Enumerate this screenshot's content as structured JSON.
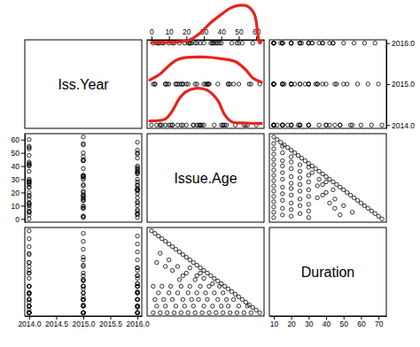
{
  "chart_data": {
    "type": "scatter_matrix",
    "marker": "circle",
    "color": "#000000",
    "variables": [
      {
        "name": "Iss.Year",
        "values": [
          2014,
          2015,
          2016,
          2014,
          2015,
          2016,
          2014,
          2015,
          2016,
          2014,
          2015,
          2016,
          2014,
          2015,
          2016,
          2014,
          2015,
          2016,
          2014,
          2015,
          2016,
          2014,
          2015,
          2016,
          2014,
          2015,
          2016,
          2014,
          2015,
          2016,
          2014,
          2015,
          2016,
          2014,
          2015,
          2016,
          2014,
          2015,
          2016,
          2014,
          2015,
          2016,
          2014,
          2015,
          2016,
          2014,
          2015,
          2016,
          2014,
          2015,
          2016,
          2014,
          2015,
          2016,
          2014,
          2015,
          2016,
          2014,
          2015,
          2016,
          2014,
          2015,
          2016,
          2014,
          2015,
          2016,
          2014,
          2015,
          2016,
          2014,
          2015,
          2016,
          2014,
          2015,
          2016,
          2014,
          2015,
          2016,
          2014,
          2015,
          2016,
          2014,
          2015,
          2016,
          2014,
          2015,
          2016,
          2014,
          2015,
          2016,
          2014,
          2015,
          2016,
          2014,
          2015,
          2016,
          2014,
          2015,
          2016
        ],
        "lim": [
          2013.92,
          2016.08
        ],
        "xticks": [
          {
            "value": 2014,
            "label": "2014.0"
          },
          {
            "value": 2014.5,
            "label": "2014.5"
          },
          {
            "value": 2015,
            "label": "2015.0"
          },
          {
            "value": 2015.5,
            "label": "2015.5"
          },
          {
            "value": 2016,
            "label": "2016.0"
          }
        ],
        "yticks": [
          {
            "value": 2014,
            "label": "2014.0"
          },
          {
            "value": 2015,
            "label": "2015.0"
          },
          {
            "value": 2016,
            "label": "2016.0"
          }
        ]
      },
      {
        "name": "Issue.Age",
        "values": [
          0,
          2,
          4,
          6,
          8,
          10,
          12,
          14,
          16,
          18,
          20,
          22,
          24,
          26,
          28,
          30,
          32,
          34,
          36,
          38,
          40,
          42,
          44,
          46,
          48,
          50,
          52,
          54,
          56,
          58,
          60,
          62,
          1,
          5,
          9,
          13,
          17,
          21,
          25,
          29,
          33,
          37,
          41,
          45,
          49,
          53,
          57,
          3,
          8,
          14,
          19,
          24,
          30,
          35,
          40,
          44,
          50,
          55,
          2,
          7,
          12,
          18,
          23,
          27,
          32,
          38,
          43,
          47,
          4,
          10,
          15,
          21,
          26,
          31,
          36,
          41,
          1,
          6,
          11,
          17,
          22,
          28,
          33,
          39,
          20,
          25,
          30,
          15,
          10,
          35,
          5,
          18,
          12,
          28,
          8,
          22,
          3,
          16,
          26
        ],
        "lim": [
          -2.5,
          64.5
        ],
        "xticks": [
          0,
          10,
          20,
          30,
          40,
          50,
          60
        ],
        "yticks": [
          0,
          10,
          20,
          30,
          40,
          50,
          60
        ]
      },
      {
        "name": "Duration",
        "values": [
          72,
          70,
          68,
          66,
          64,
          62,
          60,
          58,
          56,
          54,
          52,
          50,
          48,
          46,
          44,
          42,
          40,
          38,
          36,
          34,
          32,
          30,
          28,
          26,
          24,
          22,
          20,
          18,
          16,
          14,
          12,
          10,
          10,
          10,
          10,
          10,
          10,
          10,
          10,
          10,
          10,
          10,
          10,
          10,
          10,
          10,
          10,
          15,
          15,
          15,
          15,
          15,
          15,
          15,
          15,
          15,
          15,
          15,
          20,
          20,
          20,
          20,
          20,
          20,
          20,
          20,
          20,
          20,
          25,
          25,
          25,
          25,
          25,
          25,
          25,
          25,
          30,
          30,
          30,
          30,
          30,
          30,
          30,
          30,
          40,
          35,
          36,
          45,
          50,
          32,
          55,
          38,
          42,
          40,
          45,
          44,
          48,
          35,
          38
        ],
        "lim": [
          7.5,
          74.5
        ],
        "xticks": [
          10,
          20,
          30,
          40,
          50,
          60,
          70
        ]
      }
    ],
    "annotations": [
      {
        "type": "curve",
        "color": "#e8241c",
        "x_var": "Issue.Age",
        "y_var": "Iss.Year",
        "x": [
          0,
          15,
          22,
          28,
          34,
          40,
          45,
          50,
          55,
          59,
          61,
          62,
          63
        ],
        "y": [
          2016.02,
          2016.03,
          2016.08,
          2016.25,
          2016.5,
          2016.7,
          2016.85,
          2016.92,
          2016.9,
          2016.7,
          2016.2,
          2016.0,
          2016.05
        ]
      },
      {
        "type": "curve",
        "color": "#e8241c",
        "x_var": "Issue.Age",
        "y_var": "Iss.Year",
        "x": [
          -1,
          5,
          10,
          15,
          20,
          30,
          40,
          48,
          54,
          58,
          63
        ],
        "y": [
          2015.1,
          2015.25,
          2015.45,
          2015.6,
          2015.65,
          2015.66,
          2015.62,
          2015.55,
          2015.35,
          2015.15,
          2015.05
        ]
      },
      {
        "type": "curve",
        "color": "#e8241c",
        "x_var": "Issue.Age",
        "y_var": "Iss.Year",
        "x": [
          -1,
          8,
          12,
          16,
          20,
          26,
          32,
          38,
          42,
          46,
          55,
          63
        ],
        "y": [
          2014.1,
          2014.15,
          2014.35,
          2014.65,
          2014.82,
          2014.9,
          2014.85,
          2014.6,
          2014.25,
          2014.08,
          2014.05,
          2014.04
        ]
      }
    ]
  }
}
